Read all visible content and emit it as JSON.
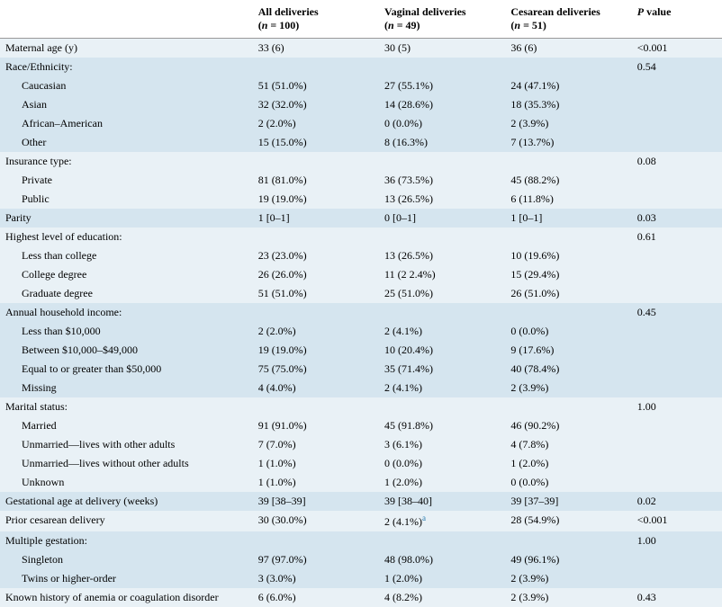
{
  "columns": {
    "label": "",
    "all": {
      "title": "All deliveries",
      "sub": "(n = 100)"
    },
    "vaginal": {
      "title": "Vaginal deliveries",
      "sub": "(n = 49)"
    },
    "cesarean": {
      "title": "Cesarean deliveries",
      "sub": "(n = 51)"
    },
    "pvalue": {
      "title": "P value"
    }
  },
  "rows": [
    {
      "band": "even",
      "label": "Maternal age (y)",
      "all": "33 (6)",
      "vag": "30 (5)",
      "ces": "36 (6)",
      "p": "<0.001"
    },
    {
      "band": "odd",
      "label": "Race/Ethnicity:",
      "all": "",
      "vag": "",
      "ces": "",
      "p": "0.54"
    },
    {
      "band": "odd",
      "indent": true,
      "label": "Caucasian",
      "all": "51 (51.0%)",
      "vag": "27 (55.1%)",
      "ces": "24 (47.1%)",
      "p": ""
    },
    {
      "band": "odd",
      "indent": true,
      "label": "Asian",
      "all": "32 (32.0%)",
      "vag": "14 (28.6%)",
      "ces": "18 (35.3%)",
      "p": ""
    },
    {
      "band": "odd",
      "indent": true,
      "label": "African–American",
      "all": "2 (2.0%)",
      "vag": "0 (0.0%)",
      "ces": "2 (3.9%)",
      "p": ""
    },
    {
      "band": "odd",
      "indent": true,
      "label": "Other",
      "all": "15 (15.0%)",
      "vag": "8 (16.3%)",
      "ces": "7 (13.7%)",
      "p": ""
    },
    {
      "band": "even",
      "label": "Insurance type:",
      "all": "",
      "vag": "",
      "ces": "",
      "p": "0.08"
    },
    {
      "band": "even",
      "indent": true,
      "label": "Private",
      "all": "81 (81.0%)",
      "vag": "36 (73.5%)",
      "ces": "45 (88.2%)",
      "p": ""
    },
    {
      "band": "even",
      "indent": true,
      "label": "Public",
      "all": "19 (19.0%)",
      "vag": "13 (26.5%)",
      "ces": "6 (11.8%)",
      "p": ""
    },
    {
      "band": "odd",
      "label": "Parity",
      "all": "1 [0–1]",
      "vag": "0 [0–1]",
      "ces": "1 [0–1]",
      "p": "0.03"
    },
    {
      "band": "even",
      "label": "Highest level of education:",
      "all": "",
      "vag": "",
      "ces": "",
      "p": "0.61"
    },
    {
      "band": "even",
      "indent": true,
      "label": "Less than college",
      "all": "23 (23.0%)",
      "vag": "13 (26.5%)",
      "ces": "10 (19.6%)",
      "p": ""
    },
    {
      "band": "even",
      "indent": true,
      "label": "College degree",
      "all": "26 (26.0%)",
      "vag": "11 (2 2.4%)",
      "ces": "15 (29.4%)",
      "p": ""
    },
    {
      "band": "even",
      "indent": true,
      "label": "Graduate degree",
      "all": "51 (51.0%)",
      "vag": "25 (51.0%)",
      "ces": "26 (51.0%)",
      "p": ""
    },
    {
      "band": "odd",
      "label": "Annual household income:",
      "all": "",
      "vag": "",
      "ces": "",
      "p": "0.45"
    },
    {
      "band": "odd",
      "indent": true,
      "label": "Less than $10,000",
      "all": "2 (2.0%)",
      "vag": "2 (4.1%)",
      "ces": "0 (0.0%)",
      "p": ""
    },
    {
      "band": "odd",
      "indent": true,
      "label": "Between $10,000–$49,000",
      "all": "19 (19.0%)",
      "vag": "10 (20.4%)",
      "ces": "9 (17.6%)",
      "p": ""
    },
    {
      "band": "odd",
      "indent": true,
      "label": "Equal to or greater than $50,000",
      "all": "75 (75.0%)",
      "vag": "35 (71.4%)",
      "ces": "40 (78.4%)",
      "p": ""
    },
    {
      "band": "odd",
      "indent": true,
      "label": "Missing",
      "all": "4 (4.0%)",
      "vag": "2 (4.1%)",
      "ces": "2 (3.9%)",
      "p": ""
    },
    {
      "band": "even",
      "label": "Marital status:",
      "all": "",
      "vag": "",
      "ces": "",
      "p": "1.00"
    },
    {
      "band": "even",
      "indent": true,
      "label": "Married",
      "all": "91 (91.0%)",
      "vag": "45 (91.8%)",
      "ces": "46 (90.2%)",
      "p": ""
    },
    {
      "band": "even",
      "indent": true,
      "label": "Unmarried—lives with other adults",
      "all": "7 (7.0%)",
      "vag": "3 (6.1%)",
      "ces": "4 (7.8%)",
      "p": ""
    },
    {
      "band": "even",
      "indent": true,
      "label": "Unmarried—lives without other adults",
      "all": "1 (1.0%)",
      "vag": "0 (0.0%)",
      "ces": "1 (2.0%)",
      "p": ""
    },
    {
      "band": "even",
      "indent": true,
      "label": "Unknown",
      "all": "1 (1.0%)",
      "vag": "1 (2.0%)",
      "ces": "0 (0.0%)",
      "p": ""
    },
    {
      "band": "odd",
      "label": "Gestational age at delivery (weeks)",
      "all": "39 [38–39]",
      "vag": "39 [38–40]",
      "ces": "39 [37–39]",
      "p": "0.02"
    },
    {
      "band": "even",
      "label": "Prior cesarean delivery",
      "all": "30 (30.0%)",
      "vag": "2 (4.1%)",
      "vag_sup": "a",
      "ces": "28 (54.9%)",
      "p": "<0.001"
    },
    {
      "band": "odd",
      "label": "Multiple gestation:",
      "all": "",
      "vag": "",
      "ces": "",
      "p": "1.00"
    },
    {
      "band": "odd",
      "indent": true,
      "label": "Singleton",
      "all": "97 (97.0%)",
      "vag": "48 (98.0%)",
      "ces": "49 (96.1%)",
      "p": ""
    },
    {
      "band": "odd",
      "indent": true,
      "label": "Twins or higher-order",
      "all": "3 (3.0%)",
      "vag": "1 (2.0%)",
      "ces": "2 (3.9%)",
      "p": ""
    },
    {
      "band": "even",
      "label": "Known history of anemia or coagulation disorder",
      "all": "6 (6.0%)",
      "vag": "4 (8.2%)",
      "ces": "2 (3.9%)",
      "p": "0.43"
    }
  ]
}
